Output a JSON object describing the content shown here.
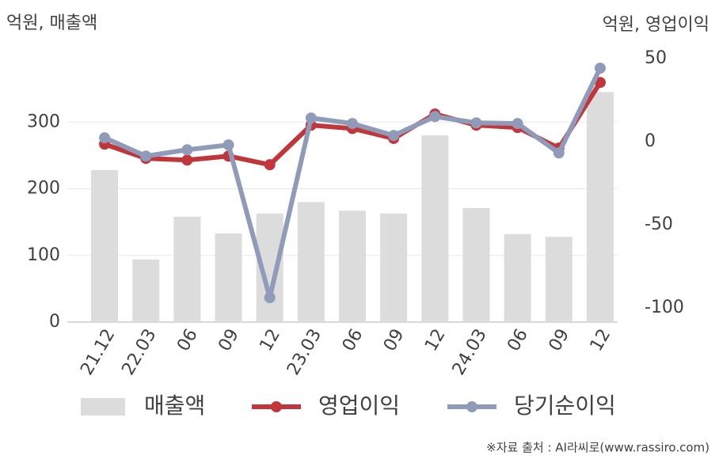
{
  "chart_data": {
    "type": "combo",
    "y_label": "억원, 매출액",
    "y2_label": "억원, 영업이익",
    "categories": [
      "21.12",
      "22.03",
      "06",
      "09",
      "12",
      "23.03",
      "06",
      "09",
      "12",
      "24.03",
      "06",
      "09",
      "12"
    ],
    "series": [
      {
        "name": "매출액",
        "type": "bar",
        "color": "#dcdcdc",
        "values": [
          228,
          94,
          158,
          133,
          163,
          180,
          167,
          163,
          280,
          171,
          132,
          128,
          345
        ]
      },
      {
        "name": "영업이익",
        "type": "line",
        "axis": "y2",
        "color": "#c0363a",
        "values": [
          -1.4,
          -10,
          -11,
          -8.6,
          -13.8,
          10,
          8,
          2,
          16.7,
          10,
          8.6,
          -3.8,
          35.7
        ]
      },
      {
        "name": "당기순이익",
        "type": "line",
        "axis": "y2",
        "color": "#8f9bb8",
        "values": [
          2.4,
          -8.6,
          -4.8,
          -1.9,
          -93.8,
          14.3,
          11,
          3.8,
          15.2,
          11.4,
          11,
          -6.7,
          44.3
        ]
      }
    ],
    "ylim": [
      0,
      400
    ],
    "yticks": [
      0,
      100,
      200,
      300
    ],
    "y2lim": [
      -108.5,
      52
    ],
    "y2ticks": [
      -100,
      -50,
      0,
      50
    ],
    "grid": true,
    "legend": "bottom",
    "source": "※자료 출처 : AI라씨로(www.rassiro.com)"
  }
}
